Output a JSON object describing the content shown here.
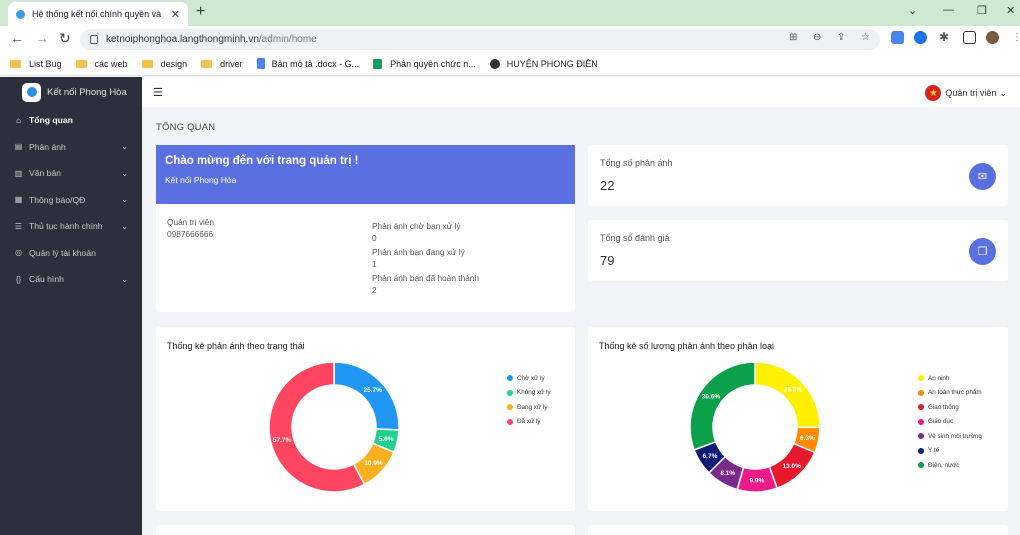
{
  "browser": {
    "tab_title": "Hệ thống kết nối chính quyền và",
    "url_host": "ketnoiphonghoa.langthongminh.vn",
    "url_path": "/admin/home",
    "bookmarks": [
      {
        "label": "List Bug",
        "icon": "folder-icon"
      },
      {
        "label": "các web",
        "icon": "folder-icon"
      },
      {
        "label": "design",
        "icon": "folder-icon"
      },
      {
        "label": "driver",
        "icon": "folder-icon"
      },
      {
        "label": "Bản mô tả .docx - G...",
        "icon": "docs-icon"
      },
      {
        "label": "Phân quyền chức n...",
        "icon": "sheets-icon"
      },
      {
        "label": "HUYỆN PHONG ĐIỀN",
        "icon": "globe-icon"
      }
    ]
  },
  "sidebar": {
    "brand": "Kết nối Phong Hòa",
    "items": [
      {
        "label": "Tổng quan",
        "icon": "home-icon",
        "expand": false
      },
      {
        "label": "Phản ánh",
        "icon": "card-icon",
        "expand": true
      },
      {
        "label": "Văn bản",
        "icon": "document-icon",
        "expand": true
      },
      {
        "label": "Thông báo/QĐ",
        "icon": "bell-icon",
        "expand": true
      },
      {
        "label": "Thủ tục hành chính",
        "icon": "list-icon",
        "expand": true
      },
      {
        "label": "Quản lý tài khoản",
        "icon": "user-icon",
        "expand": false
      },
      {
        "label": "Cấu hình",
        "icon": "braces-icon",
        "expand": true
      }
    ]
  },
  "header": {
    "user_menu": "Quản trị viên"
  },
  "page": {
    "title": "TỔNG QUAN"
  },
  "welcome": {
    "title": "Chào mừng đến với trang quản trị !",
    "subtitle": "Kết nối Phong Hòa",
    "role": "Quản trị viên",
    "phone": "0987666666",
    "stats": [
      {
        "label": "Phản ánh chờ bạn xử lý",
        "value": "0"
      },
      {
        "label": "Phản ánh bạn đang xử lý",
        "value": "1"
      },
      {
        "label": "Phản ánh bạn đã hoàn thành",
        "value": "2"
      }
    ]
  },
  "cards": {
    "feedback_total": {
      "label": "Tổng số phản ánh",
      "value": "22"
    },
    "rating_total": {
      "label": "Tổng số đánh giá",
      "value": "79"
    }
  },
  "colors": {
    "accent": "#5a6fe0",
    "sidebar": "#2d303c"
  },
  "chart_data": [
    {
      "type": "pie",
      "title": "Thống kê phản ánh theo trạng thái",
      "categories": [
        "Chờ xử lý",
        "Không xử lý",
        "Đang xử lý",
        "Đã xử lý"
      ],
      "values": [
        25.7,
        5.6,
        10.9,
        57.7
      ],
      "data_labels": [
        "25.7%",
        "5.6%",
        "10.9%",
        "57.7%"
      ],
      "colors": [
        "#2196f3",
        "#20d28f",
        "#ffb020",
        "#ff4560"
      ],
      "legend": "right"
    },
    {
      "type": "pie",
      "title": "Thống kê số lượng phản ánh theo phân loại",
      "categories": [
        "An ninh",
        "An toàn thực phẩm",
        "Giao thông",
        "Giáo dục",
        "Vệ sinh môi trường",
        "Y tế",
        "Điện, nước"
      ],
      "values": [
        25.0,
        6.3,
        13.0,
        9.9,
        8.1,
        6.7,
        30.6
      ],
      "data_labels": [
        "25.0%",
        "6.3%",
        "13.0%",
        "9.9%",
        "8.1%",
        "6.7%",
        "30.6%"
      ],
      "colors": [
        "#ffef00",
        "#ff8a00",
        "#e8192c",
        "#ee1a8a",
        "#7a2a8a",
        "#101a7a",
        "#0aa14a"
      ],
      "legend": "right"
    }
  ]
}
